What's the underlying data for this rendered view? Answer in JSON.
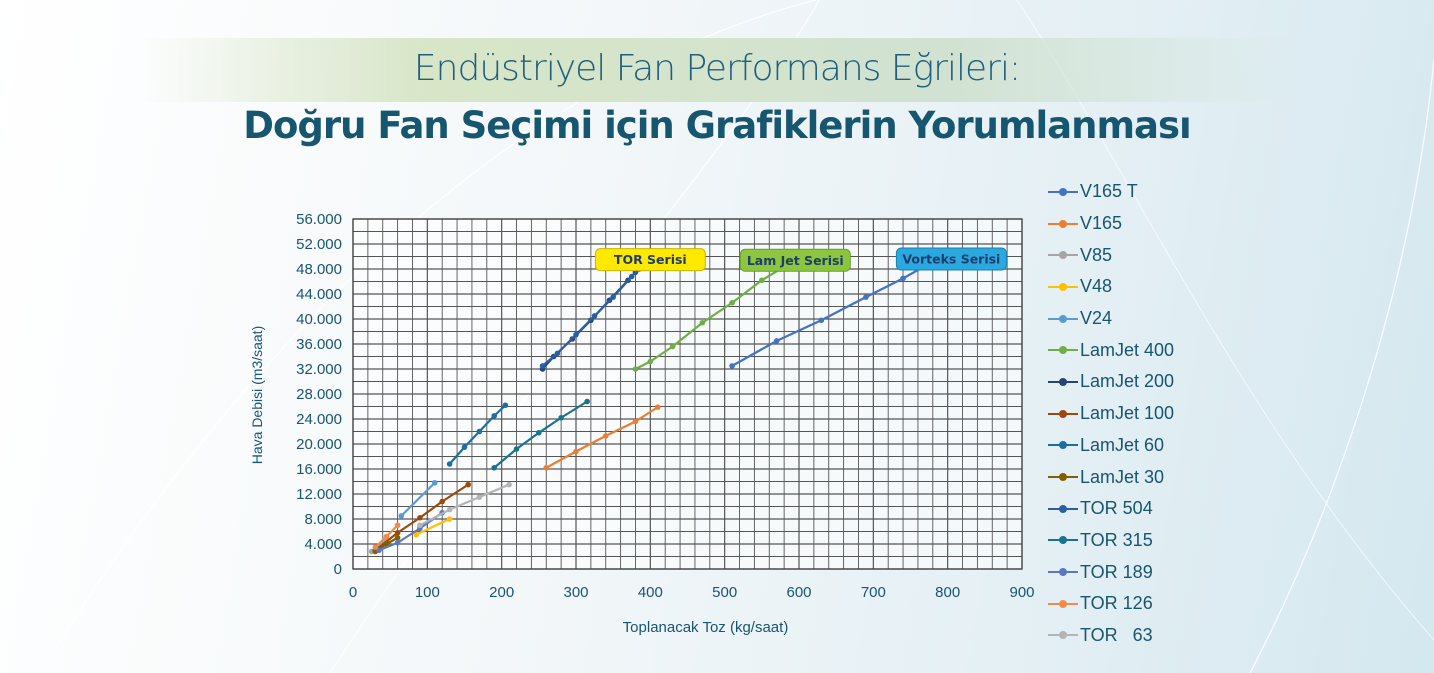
{
  "header": {
    "title": "Endüstriyel Fan Performans Eğrileri:",
    "subtitle": "Doğru Fan Seçimi için Grafiklerin Yorumlanması"
  },
  "colors": {
    "title_text": "#1d5f7c",
    "axis_text": "#17566f",
    "grid": "#555555",
    "legend_text": "#17566f"
  },
  "chart_data": {
    "type": "line",
    "xlabel": "Toplanacak Toz (kg/saat)",
    "ylabel": "Hava Debisi (m3/saat)",
    "xlim": [
      0,
      900
    ],
    "ylim": [
      0,
      56000
    ],
    "x_ticks": [
      "0",
      "100",
      "200",
      "300",
      "400",
      "500",
      "600",
      "700",
      "800",
      "900"
    ],
    "y_ticks": [
      "0",
      "4.000",
      "8.000",
      "12.000",
      "16.000",
      "20.000",
      "24.000",
      "28.000",
      "32.000",
      "36.000",
      "40.000",
      "44.000",
      "48.000",
      "52.000",
      "56.000"
    ],
    "grid": true,
    "legend_position": "right",
    "annotations": [
      {
        "text": "TOR Serisi",
        "x": 400,
        "y": 49500,
        "bg": "#ffe900",
        "border": "#c9b500",
        "color": "#1f3d6b"
      },
      {
        "text": "Lam Jet Serisi",
        "x": 595,
        "y": 49400,
        "bg": "#8cc63f",
        "border": "#6b9d2a",
        "color": "#1f3d6b"
      },
      {
        "text": "Vorteks Serisi",
        "x": 805,
        "y": 49600,
        "bg": "#29a9e0",
        "border": "#1a7fb0",
        "color": "#1f3d6b"
      }
    ],
    "series": [
      {
        "name": "V165 T",
        "color": "#4472c4",
        "values": [
          [
            510,
            32500
          ],
          [
            570,
            36500
          ],
          [
            630,
            39800
          ],
          [
            690,
            43500
          ],
          [
            740,
            46500
          ],
          [
            770,
            48500
          ]
        ]
      },
      {
        "name": "V165",
        "color": "#ed7d31",
        "values": [
          [
            260,
            16200
          ],
          [
            300,
            18800
          ],
          [
            340,
            21300
          ],
          [
            380,
            23600
          ],
          [
            410,
            25900
          ]
        ]
      },
      {
        "name": "V85",
        "color": "#a5a5a5",
        "values": [
          [
            25,
            2800
          ],
          [
            45,
            4500
          ]
        ]
      },
      {
        "name": "V48",
        "color": "#ffc000",
        "values": [
          [
            85,
            5500
          ],
          [
            130,
            8000
          ]
        ]
      },
      {
        "name": "V24",
        "color": "#5b9bd5",
        "values": [
          [
            65,
            8500
          ],
          [
            110,
            13800
          ]
        ]
      },
      {
        "name": "LamJet 400",
        "color": "#70ad47",
        "values": [
          [
            380,
            32000
          ],
          [
            400,
            33200
          ],
          [
            430,
            35600
          ],
          [
            470,
            39400
          ],
          [
            510,
            42600
          ],
          [
            550,
            46200
          ],
          [
            575,
            48000
          ]
        ]
      },
      {
        "name": "LamJet 200",
        "color": "#264478",
        "values": [
          [
            255,
            32000
          ],
          [
            270,
            34000
          ],
          [
            295,
            36800
          ],
          [
            320,
            39800
          ],
          [
            345,
            43000
          ],
          [
            370,
            46200
          ],
          [
            380,
            47500
          ]
        ]
      },
      {
        "name": "LamJet 100",
        "color": "#9e480e",
        "values": [
          [
            30,
            3000
          ],
          [
            60,
            5800
          ],
          [
            90,
            8200
          ],
          [
            120,
            10800
          ],
          [
            155,
            13500
          ]
        ]
      },
      {
        "name": "LamJet 60",
        "color": "#1a6fa3",
        "values": [
          [
            130,
            16800
          ],
          [
            150,
            19500
          ],
          [
            170,
            22000
          ],
          [
            190,
            24500
          ],
          [
            205,
            26200
          ]
        ]
      },
      {
        "name": "LamJet 30",
        "color": "#806000",
        "values": [
          [
            30,
            2800
          ],
          [
            45,
            4000
          ],
          [
            60,
            5000
          ]
        ]
      },
      {
        "name": "TOR 504",
        "color": "#2a5fa5",
        "values": [
          [
            255,
            32500
          ],
          [
            275,
            34500
          ],
          [
            300,
            37500
          ],
          [
            325,
            40500
          ],
          [
            350,
            43500
          ],
          [
            375,
            46800
          ],
          [
            385,
            48000
          ]
        ]
      },
      {
        "name": "TOR 315",
        "color": "#17738f",
        "values": [
          [
            190,
            16200
          ],
          [
            220,
            19200
          ],
          [
            250,
            21800
          ],
          [
            280,
            24200
          ],
          [
            315,
            26800
          ]
        ]
      },
      {
        "name": "TOR 189",
        "color": "#5a78c0",
        "values": [
          [
            35,
            3000
          ],
          [
            60,
            4200
          ],
          [
            90,
            6500
          ],
          [
            120,
            9000
          ]
        ]
      },
      {
        "name": "TOR 126",
        "color": "#f08c43",
        "values": [
          [
            30,
            3500
          ],
          [
            45,
            5200
          ],
          [
            60,
            7000
          ]
        ]
      },
      {
        "name": "TOR   63",
        "color": "#b4b4b4",
        "values": [
          [
            90,
            7000
          ],
          [
            130,
            9500
          ],
          [
            170,
            11500
          ],
          [
            210,
            13500
          ]
        ]
      }
    ]
  }
}
